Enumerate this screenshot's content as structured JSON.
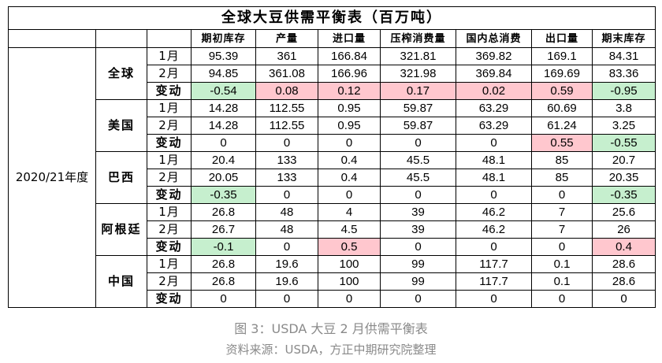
{
  "title": "全球大豆供需平衡表（百万吨）",
  "columns": [
    "期初库存",
    "产量",
    "进口量",
    "压榨消费量",
    "国内总消费",
    "出口量",
    "期末库存"
  ],
  "season": "2020/21年度",
  "row_labels": {
    "jan": "1月",
    "feb": "2月",
    "change": "变动"
  },
  "colors": {
    "decrease": "#c6efce",
    "increase": "#ffc7ce"
  },
  "groups": [
    {
      "name": "全球",
      "jan": [
        "95.39",
        "361",
        "166.84",
        "321.81",
        "369.82",
        "169.1",
        "84.31"
      ],
      "feb": [
        "94.85",
        "361.08",
        "166.96",
        "321.98",
        "369.84",
        "169.69",
        "83.36"
      ],
      "change": [
        "-0.54",
        "0.08",
        "0.12",
        "0.17",
        "0.02",
        "0.59",
        "-0.95"
      ]
    },
    {
      "name": "美国",
      "jan": [
        "14.28",
        "112.55",
        "0.95",
        "59.87",
        "63.29",
        "60.69",
        "3.8"
      ],
      "feb": [
        "14.28",
        "112.55",
        "0.95",
        "59.87",
        "63.29",
        "61.24",
        "3.25"
      ],
      "change": [
        "0",
        "0",
        "0",
        "0",
        "0",
        "0.55",
        "-0.55"
      ]
    },
    {
      "name": "巴西",
      "jan": [
        "20.4",
        "133",
        "0.4",
        "45.5",
        "48.1",
        "85",
        "20.7"
      ],
      "feb": [
        "20.05",
        "133",
        "0.4",
        "45.5",
        "48.1",
        "85",
        "20.35"
      ],
      "change": [
        "-0.35",
        "0",
        "0",
        "0",
        "0",
        "0",
        "-0.35"
      ]
    },
    {
      "name": "阿根廷",
      "jan": [
        "26.8",
        "48",
        "4",
        "39",
        "46.2",
        "7",
        "25.6"
      ],
      "feb": [
        "26.7",
        "48",
        "4.5",
        "39",
        "46.2",
        "7",
        "26"
      ],
      "change": [
        "-0.1",
        "0",
        "0.5",
        "0",
        "0",
        "0",
        "0.4"
      ]
    },
    {
      "name": "中国",
      "jan": [
        "26.8",
        "19.6",
        "100",
        "99",
        "117.7",
        "0.1",
        "28.6"
      ],
      "feb": [
        "26.8",
        "19.6",
        "100",
        "99",
        "117.7",
        "0.1",
        "28.6"
      ],
      "change": [
        "0",
        "0",
        "0",
        "0",
        "0",
        "0",
        "0"
      ]
    }
  ],
  "caption": "图 3：USDA 大豆 2 月供需平衡表",
  "source": "资料来源：USDA，方正中期研究院整理"
}
